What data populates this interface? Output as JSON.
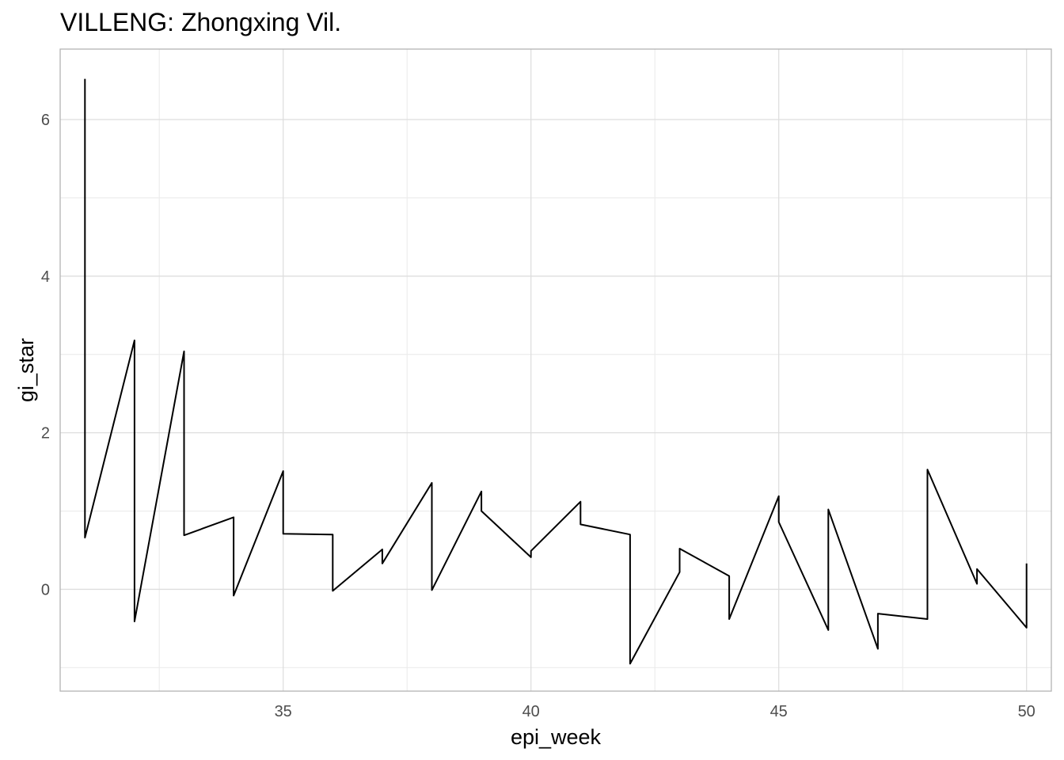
{
  "chart_data": {
    "type": "line",
    "title": "VILLENG: Zhongxing Vil.",
    "xlabel": "epi_week",
    "ylabel": "gi_star",
    "xlim": [
      30.5,
      50.5
    ],
    "ylim": [
      -1.3,
      6.9
    ],
    "x_ticks": [
      35,
      40,
      45,
      50
    ],
    "y_ticks": [
      0,
      2,
      4,
      6
    ],
    "x_minor_ticks": [
      32.5,
      37.5,
      42.5,
      47.5
    ],
    "y_minor_ticks": [
      -1,
      1,
      3,
      5
    ],
    "grid": true,
    "series": [
      {
        "color": "#000000",
        "points": [
          [
            31,
            6.52
          ],
          [
            31,
            0.66
          ],
          [
            32,
            3.18
          ],
          [
            32,
            -0.41
          ],
          [
            33,
            3.04
          ],
          [
            33,
            0.69
          ],
          [
            34,
            0.92
          ],
          [
            34,
            -0.08
          ],
          [
            35,
            1.51
          ],
          [
            35,
            0.71
          ],
          [
            36,
            0.7
          ],
          [
            36,
            -0.02
          ],
          [
            37,
            0.51
          ],
          [
            37,
            0.33
          ],
          [
            38,
            1.36
          ],
          [
            38,
            -0.01
          ],
          [
            39,
            1.25
          ],
          [
            39,
            1.0
          ],
          [
            40,
            0.41
          ],
          [
            40,
            0.49
          ],
          [
            41,
            1.12
          ],
          [
            41,
            0.83
          ],
          [
            42,
            0.7
          ],
          [
            42,
            -0.95
          ],
          [
            43,
            0.22
          ],
          [
            43,
            0.52
          ],
          [
            44,
            0.17
          ],
          [
            44,
            -0.38
          ],
          [
            45,
            1.19
          ],
          [
            45,
            0.86
          ],
          [
            46,
            -0.52
          ],
          [
            46,
            1.02
          ],
          [
            47,
            -0.76
          ],
          [
            47,
            -0.31
          ],
          [
            48,
            -0.38
          ],
          [
            48,
            1.53
          ],
          [
            49,
            0.07
          ],
          [
            49,
            0.26
          ],
          [
            50,
            -0.49
          ],
          [
            50,
            0.33
          ]
        ]
      }
    ]
  }
}
